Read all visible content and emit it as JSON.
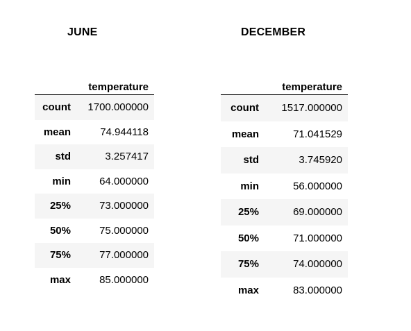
{
  "june": {
    "title": "JUNE",
    "column": "temperature",
    "rows": [
      {
        "label": "count",
        "value": "1700.000000"
      },
      {
        "label": "mean",
        "value": "74.944118"
      },
      {
        "label": "std",
        "value": "3.257417"
      },
      {
        "label": "min",
        "value": "64.000000"
      },
      {
        "label": "25%",
        "value": "73.000000"
      },
      {
        "label": "50%",
        "value": "75.000000"
      },
      {
        "label": "75%",
        "value": "77.000000"
      },
      {
        "label": "max",
        "value": "85.000000"
      }
    ]
  },
  "december": {
    "title": "DECEMBER",
    "column": "temperature",
    "rows": [
      {
        "label": "count",
        "value": "1517.000000"
      },
      {
        "label": "mean",
        "value": "71.041529"
      },
      {
        "label": "std",
        "value": "3.745920"
      },
      {
        "label": "min",
        "value": "56.000000"
      },
      {
        "label": "25%",
        "value": "69.000000"
      },
      {
        "label": "50%",
        "value": "71.000000"
      },
      {
        "label": "75%",
        "value": "74.000000"
      },
      {
        "label": "max",
        "value": "83.000000"
      }
    ]
  }
}
